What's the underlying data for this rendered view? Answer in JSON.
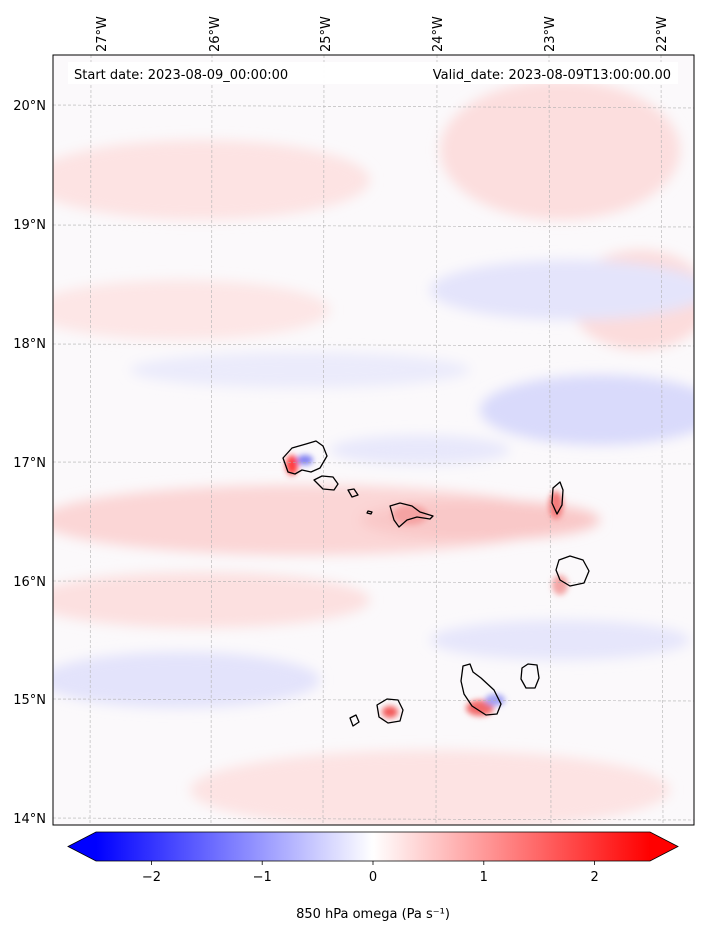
{
  "header": {
    "start_date": "Start date: 2023-08-09_00:00:00",
    "valid_date": "Valid_date: 2023-08-09T13:00:00.00"
  },
  "lon_labels": [
    "27°W",
    "26°W",
    "25°W",
    "24°W",
    "23°W",
    "22°W"
  ],
  "lat_labels": [
    "20°N",
    "19°N",
    "18°N",
    "17°N",
    "16°N",
    "15°N",
    "14°N"
  ],
  "colorbar": {
    "label": "850 hPa omega (Pa s⁻¹)",
    "ticks": [
      "−2",
      "−1",
      "0",
      "1",
      "2"
    ],
    "tick_values": [
      -2,
      -1,
      0,
      1,
      2
    ],
    "vmin": -2.5,
    "vmax": 2.5,
    "low_color": "#0000ff",
    "mid_color": "#ffffff",
    "high_color": "#ff0000"
  },
  "colors": {
    "grid": "#b0b0b0",
    "coastline": "#000000",
    "positive_tint": "#fbd9d9",
    "negative_tint": "#dfe0fb"
  }
}
